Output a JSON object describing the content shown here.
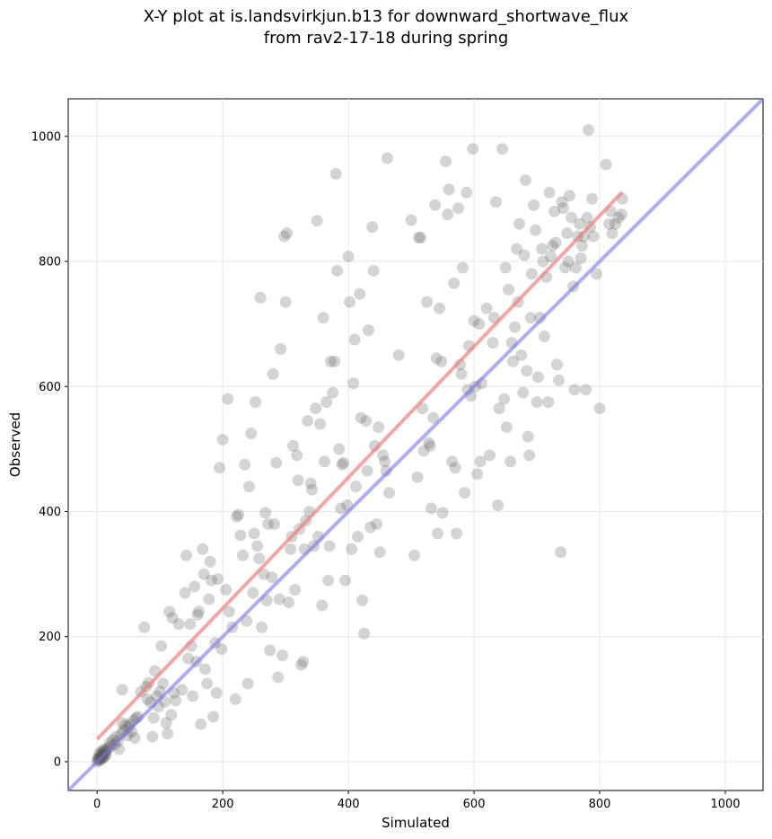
{
  "chart_data": {
    "type": "scatter",
    "title_line1": "X-Y plot at is.landsvirkjun.b13 for downward_shortwave_flux",
    "title_line2": "from rav2-17-18 during spring",
    "xlabel": "Simulated",
    "ylabel": "Observed",
    "xlim": [
      -46,
      1060
    ],
    "ylim": [
      -46,
      1060
    ],
    "xticks": [
      0,
      200,
      400,
      600,
      800,
      1000
    ],
    "yticks": [
      0,
      200,
      400,
      600,
      800,
      1000
    ],
    "grid": true,
    "point_color": "#555555",
    "regression_color": "#f08080",
    "identity_color": "#7777ee",
    "regression_line": {
      "x": [
        0,
        836
      ],
      "y": [
        36,
        911
      ]
    },
    "identity_line": {
      "x": [
        -46,
        1060
      ],
      "y": [
        -46,
        1060
      ]
    },
    "points": [
      [
        0,
        0
      ],
      [
        2,
        3
      ],
      [
        3,
        6
      ],
      [
        4,
        2
      ],
      [
        5,
        8
      ],
      [
        6,
        4
      ],
      [
        7,
        10
      ],
      [
        8,
        5
      ],
      [
        9,
        12
      ],
      [
        10,
        7
      ],
      [
        11,
        14
      ],
      [
        12,
        9
      ],
      [
        13,
        16
      ],
      [
        14,
        11
      ],
      [
        15,
        18
      ],
      [
        3,
        12
      ],
      [
        6,
        15
      ],
      [
        9,
        18
      ],
      [
        12,
        20
      ],
      [
        1,
        5
      ],
      [
        18,
        22
      ],
      [
        20,
        30
      ],
      [
        22,
        25
      ],
      [
        25,
        35
      ],
      [
        28,
        28
      ],
      [
        30,
        40
      ],
      [
        33,
        33
      ],
      [
        35,
        20
      ],
      [
        38,
        45
      ],
      [
        40,
        62
      ],
      [
        42,
        50
      ],
      [
        45,
        58
      ],
      [
        48,
        42
      ],
      [
        50,
        55
      ],
      [
        52,
        60
      ],
      [
        55,
        48
      ],
      [
        58,
        66
      ],
      [
        60,
        38
      ],
      [
        62,
        70
      ],
      [
        65,
        72
      ],
      [
        40,
        115
      ],
      [
        75,
        215
      ],
      [
        70,
        112
      ],
      [
        78,
        120
      ],
      [
        80,
        100
      ],
      [
        82,
        126
      ],
      [
        85,
        95
      ],
      [
        88,
        40
      ],
      [
        90,
        70
      ],
      [
        92,
        145
      ],
      [
        95,
        105
      ],
      [
        98,
        88
      ],
      [
        100,
        112
      ],
      [
        102,
        185
      ],
      [
        105,
        125
      ],
      [
        108,
        96
      ],
      [
        110,
        62
      ],
      [
        112,
        45
      ],
      [
        115,
        240
      ],
      [
        118,
        75
      ],
      [
        120,
        230
      ],
      [
        122,
        110
      ],
      [
        125,
        98
      ],
      [
        130,
        220
      ],
      [
        135,
        115
      ],
      [
        140,
        270
      ],
      [
        142,
        330
      ],
      [
        145,
        165
      ],
      [
        148,
        220
      ],
      [
        150,
        185
      ],
      [
        152,
        105
      ],
      [
        155,
        280
      ],
      [
        158,
        160
      ],
      [
        160,
        235
      ],
      [
        162,
        240
      ],
      [
        165,
        60
      ],
      [
        168,
        340
      ],
      [
        170,
        300
      ],
      [
        172,
        148
      ],
      [
        175,
        125
      ],
      [
        178,
        260
      ],
      [
        180,
        320
      ],
      [
        182,
        290
      ],
      [
        185,
        72
      ],
      [
        188,
        190
      ],
      [
        190,
        110
      ],
      [
        192,
        292
      ],
      [
        195,
        470
      ],
      [
        198,
        180
      ],
      [
        200,
        515
      ],
      [
        205,
        275
      ],
      [
        208,
        580
      ],
      [
        210,
        240
      ],
      [
        215,
        215
      ],
      [
        220,
        100
      ],
      [
        222,
        392
      ],
      [
        225,
        395
      ],
      [
        228,
        362
      ],
      [
        232,
        330
      ],
      [
        235,
        475
      ],
      [
        238,
        225
      ],
      [
        240,
        125
      ],
      [
        242,
        440
      ],
      [
        245,
        525
      ],
      [
        248,
        270
      ],
      [
        250,
        365
      ],
      [
        252,
        575
      ],
      [
        255,
        345
      ],
      [
        258,
        325
      ],
      [
        260,
        742
      ],
      [
        262,
        215
      ],
      [
        265,
        300
      ],
      [
        268,
        398
      ],
      [
        270,
        258
      ],
      [
        272,
        380
      ],
      [
        275,
        178
      ],
      [
        278,
        295
      ],
      [
        280,
        620
      ],
      [
        282,
        380
      ],
      [
        285,
        478
      ],
      [
        288,
        135
      ],
      [
        290,
        260
      ],
      [
        292,
        660
      ],
      [
        295,
        170
      ],
      [
        298,
        840
      ],
      [
        300,
        735
      ],
      [
        302,
        845
      ],
      [
        305,
        255
      ],
      [
        308,
        340
      ],
      [
        310,
        360
      ],
      [
        312,
        505
      ],
      [
        315,
        275
      ],
      [
        318,
        490
      ],
      [
        320,
        450
      ],
      [
        322,
        372
      ],
      [
        325,
        155
      ],
      [
        328,
        160
      ],
      [
        330,
        340
      ],
      [
        332,
        385
      ],
      [
        335,
        545
      ],
      [
        338,
        400
      ],
      [
        340,
        445
      ],
      [
        342,
        435
      ],
      [
        345,
        345
      ],
      [
        348,
        565
      ],
      [
        350,
        865
      ],
      [
        352,
        360
      ],
      [
        355,
        540
      ],
      [
        358,
        250
      ],
      [
        360,
        710
      ],
      [
        362,
        480
      ],
      [
        365,
        575
      ],
      [
        368,
        290
      ],
      [
        370,
        345
      ],
      [
        372,
        640
      ],
      [
        375,
        590
      ],
      [
        378,
        640
      ],
      [
        380,
        940
      ],
      [
        382,
        785
      ],
      [
        385,
        500
      ],
      [
        388,
        405
      ],
      [
        390,
        475
      ],
      [
        392,
        478
      ],
      [
        395,
        290
      ],
      [
        398,
        410
      ],
      [
        400,
        808
      ],
      [
        402,
        735
      ],
      [
        405,
        340
      ],
      [
        408,
        605
      ],
      [
        410,
        675
      ],
      [
        412,
        440
      ],
      [
        415,
        360
      ],
      [
        418,
        748
      ],
      [
        420,
        550
      ],
      [
        422,
        258
      ],
      [
        425,
        205
      ],
      [
        428,
        545
      ],
      [
        430,
        465
      ],
      [
        432,
        690
      ],
      [
        435,
        375
      ],
      [
        438,
        855
      ],
      [
        440,
        785
      ],
      [
        442,
        505
      ],
      [
        445,
        380
      ],
      [
        448,
        535
      ],
      [
        450,
        335
      ],
      [
        455,
        490
      ],
      [
        458,
        480
      ],
      [
        460,
        465
      ],
      [
        462,
        965
      ],
      [
        465,
        430
      ],
      [
        480,
        650
      ],
      [
        500,
        866
      ],
      [
        505,
        330
      ],
      [
        510,
        455
      ],
      [
        512,
        838
      ],
      [
        515,
        838
      ],
      [
        518,
        565
      ],
      [
        520,
        497
      ],
      [
        525,
        735
      ],
      [
        528,
        510
      ],
      [
        530,
        505
      ],
      [
        532,
        405
      ],
      [
        535,
        550
      ],
      [
        538,
        890
      ],
      [
        540,
        645
      ],
      [
        542,
        365
      ],
      [
        545,
        725
      ],
      [
        548,
        640
      ],
      [
        550,
        398
      ],
      [
        555,
        960
      ],
      [
        558,
        875
      ],
      [
        560,
        915
      ],
      [
        565,
        480
      ],
      [
        568,
        765
      ],
      [
        570,
        470
      ],
      [
        572,
        365
      ],
      [
        575,
        885
      ],
      [
        578,
        635
      ],
      [
        580,
        620
      ],
      [
        582,
        790
      ],
      [
        585,
        430
      ],
      [
        588,
        910
      ],
      [
        590,
        595
      ],
      [
        592,
        665
      ],
      [
        595,
        585
      ],
      [
        598,
        980
      ],
      [
        600,
        705
      ],
      [
        602,
        600
      ],
      [
        605,
        460
      ],
      [
        608,
        700
      ],
      [
        610,
        480
      ],
      [
        612,
        605
      ],
      [
        620,
        725
      ],
      [
        625,
        490
      ],
      [
        630,
        670
      ],
      [
        632,
        710
      ],
      [
        635,
        895
      ],
      [
        638,
        410
      ],
      [
        640,
        565
      ],
      [
        645,
        980
      ],
      [
        648,
        580
      ],
      [
        650,
        790
      ],
      [
        652,
        535
      ],
      [
        655,
        755
      ],
      [
        658,
        480
      ],
      [
        660,
        670
      ],
      [
        662,
        640
      ],
      [
        665,
        695
      ],
      [
        668,
        820
      ],
      [
        670,
        735
      ],
      [
        672,
        860
      ],
      [
        675,
        650
      ],
      [
        678,
        590
      ],
      [
        680,
        810
      ],
      [
        682,
        930
      ],
      [
        684,
        625
      ],
      [
        686,
        520
      ],
      [
        688,
        490
      ],
      [
        690,
        710
      ],
      [
        692,
        780
      ],
      [
        695,
        890
      ],
      [
        698,
        850
      ],
      [
        700,
        575
      ],
      [
        702,
        615
      ],
      [
        705,
        710
      ],
      [
        708,
        820
      ],
      [
        710,
        800
      ],
      [
        712,
        680
      ],
      [
        715,
        775
      ],
      [
        718,
        575
      ],
      [
        720,
        910
      ],
      [
        722,
        808
      ],
      [
        725,
        825
      ],
      [
        728,
        880
      ],
      [
        730,
        830
      ],
      [
        732,
        635
      ],
      [
        735,
        610
      ],
      [
        738,
        335
      ],
      [
        740,
        895
      ],
      [
        742,
        885
      ],
      [
        745,
        790
      ],
      [
        748,
        845
      ],
      [
        750,
        800
      ],
      [
        752,
        905
      ],
      [
        755,
        870
      ],
      [
        758,
        760
      ],
      [
        760,
        595
      ],
      [
        762,
        790
      ],
      [
        765,
        840
      ],
      [
        768,
        860
      ],
      [
        770,
        805
      ],
      [
        772,
        825
      ],
      [
        775,
        840
      ],
      [
        778,
        595
      ],
      [
        780,
        870
      ],
      [
        782,
        1010
      ],
      [
        785,
        855
      ],
      [
        788,
        900
      ],
      [
        790,
        840
      ],
      [
        795,
        780
      ],
      [
        800,
        565
      ],
      [
        810,
        955
      ],
      [
        815,
        860
      ],
      [
        818,
        880
      ],
      [
        820,
        845
      ],
      [
        825,
        860
      ],
      [
        830,
        870
      ],
      [
        835,
        875
      ],
      [
        836,
        900
      ]
    ]
  }
}
